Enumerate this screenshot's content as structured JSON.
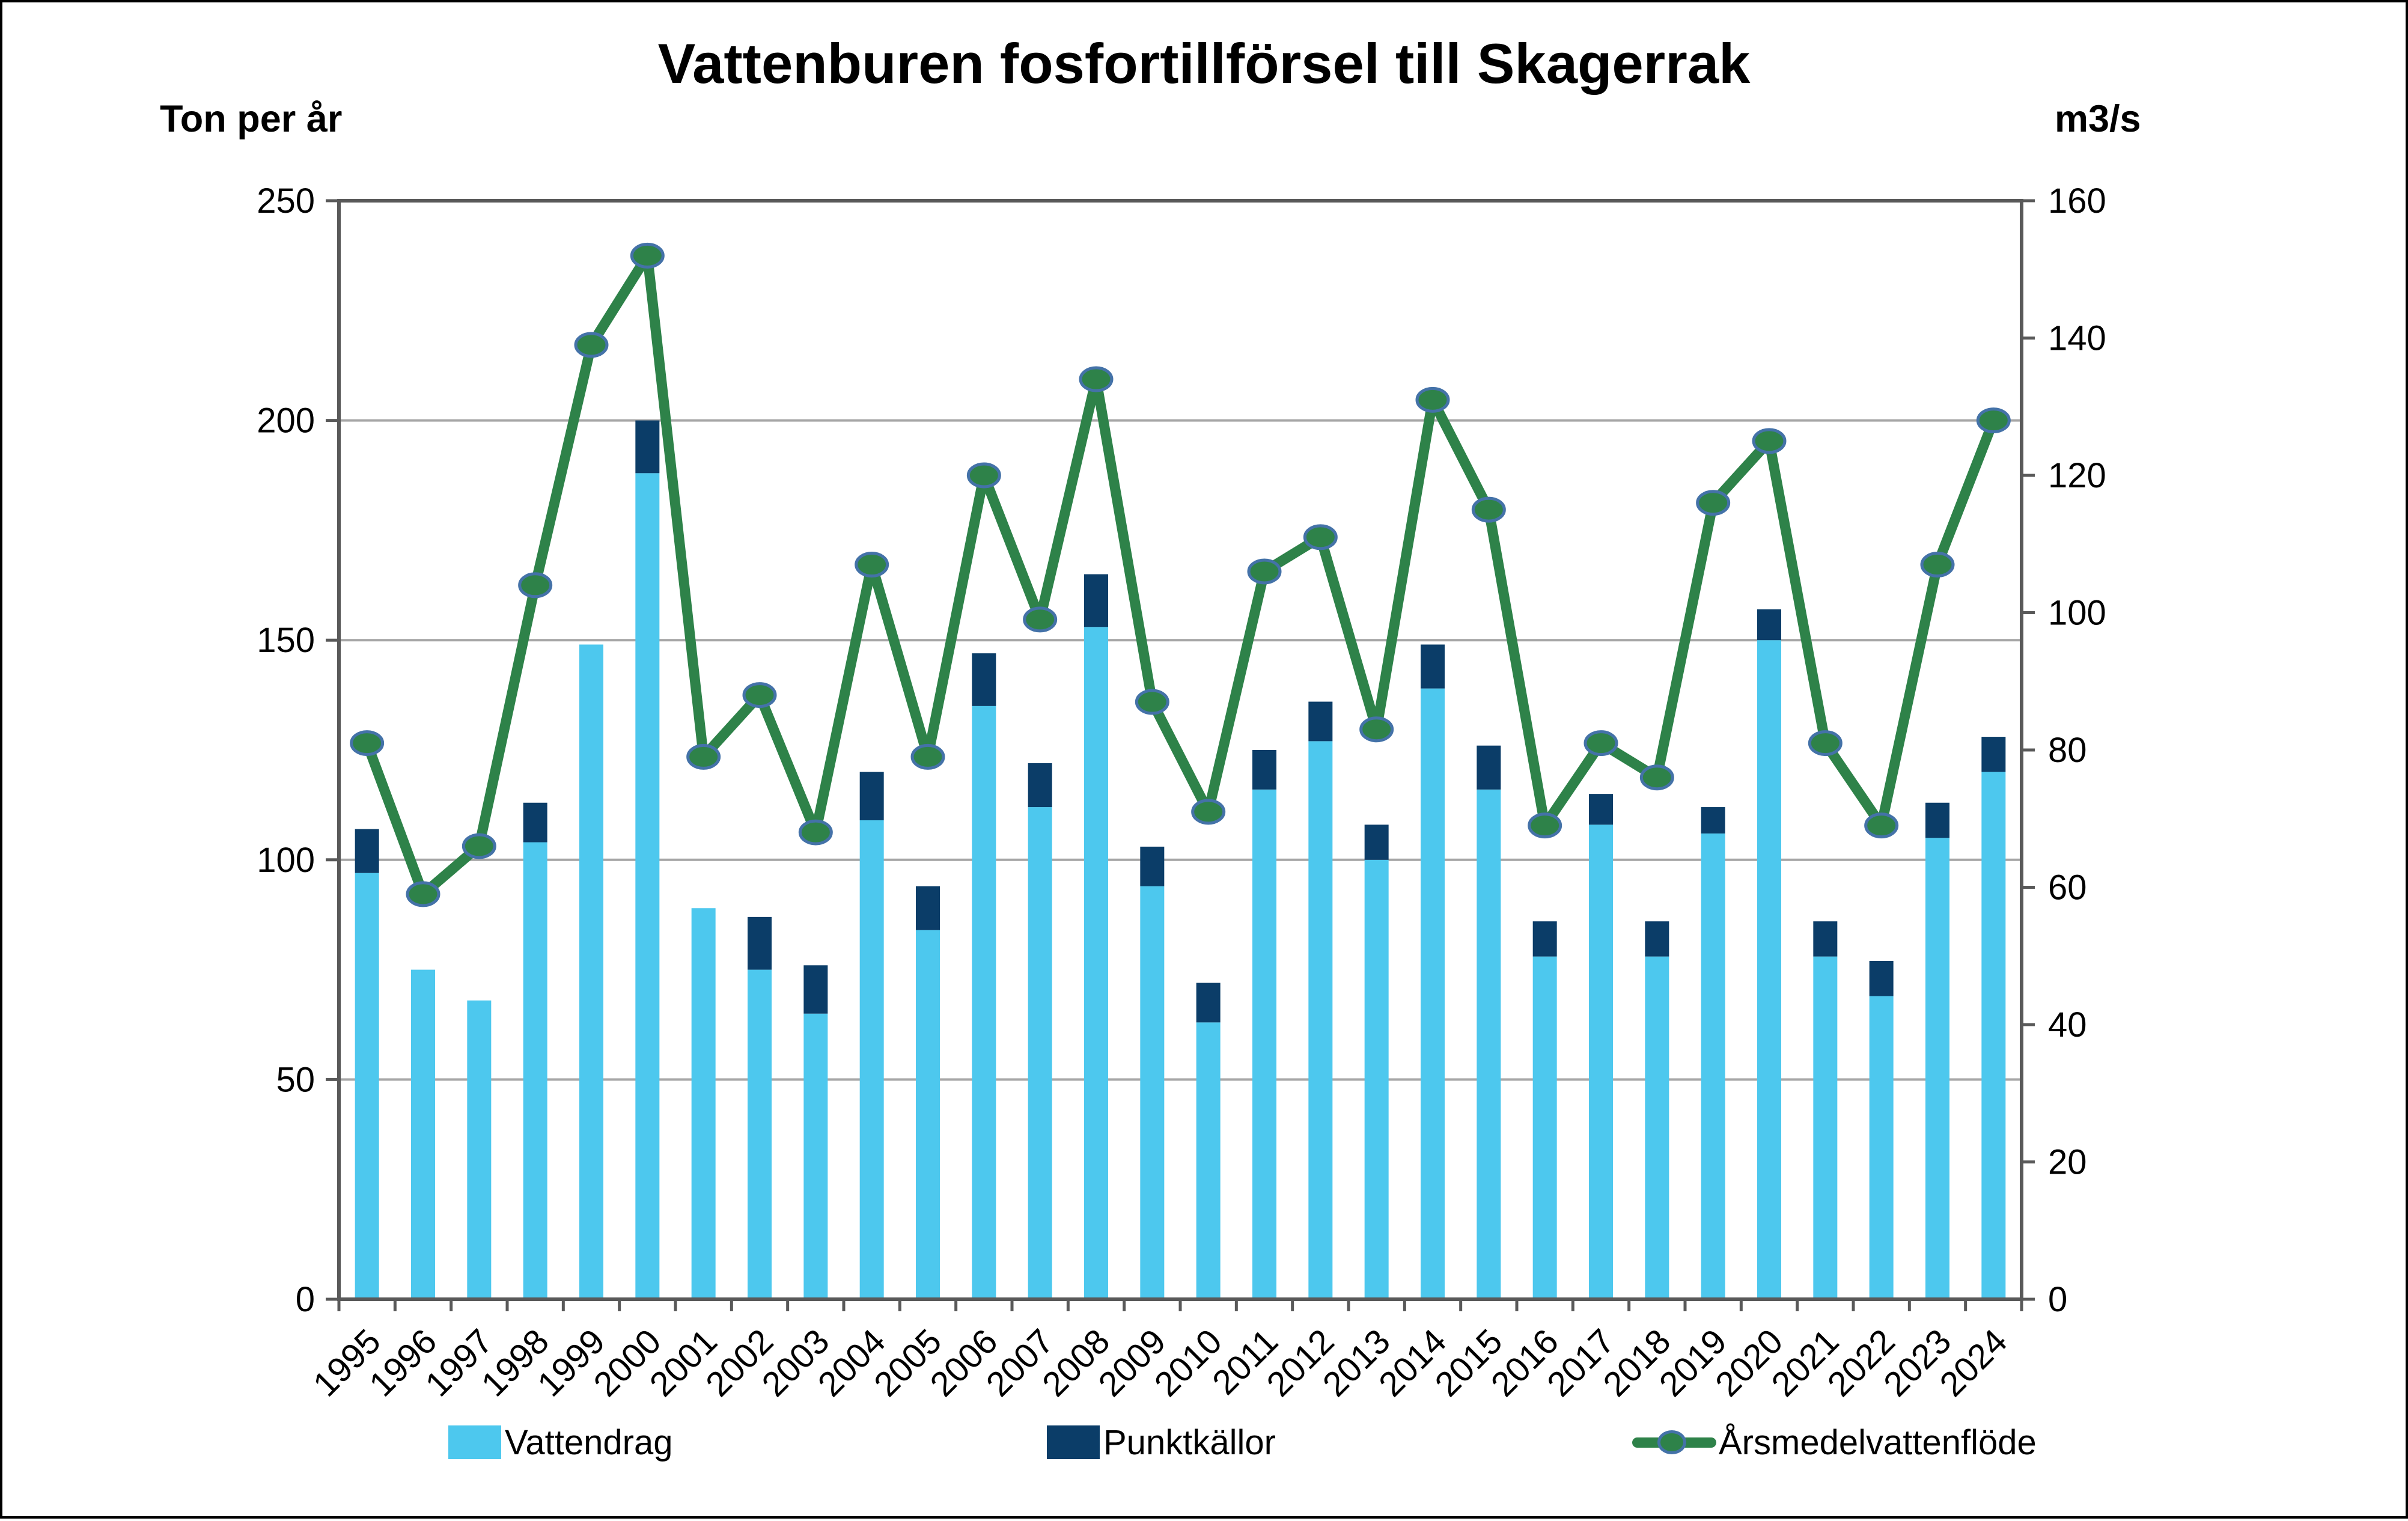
{
  "title": "Vattenburen fosfortillförsel till Skagerrak",
  "left_axis": {
    "label": "Ton per år",
    "ticks": [
      0,
      50,
      100,
      150,
      200,
      250
    ],
    "max": 250
  },
  "right_axis": {
    "label": "m3/s",
    "ticks": [
      0,
      20,
      40,
      60,
      80,
      100,
      120,
      140,
      160
    ],
    "max": 160
  },
  "legend": [
    {
      "label": "Vattendrag",
      "type": "bar",
      "color": "#4DC8EE"
    },
    {
      "label": "Punktkällor",
      "type": "bar",
      "color": "#0B3D68"
    },
    {
      "label": "Årsmedelvattenflöde",
      "type": "line",
      "color": "#2E8249"
    }
  ],
  "colors": {
    "vattendrag": "#4DC8EE",
    "punktkallor": "#0B3D68",
    "flode_line": "#2E8249",
    "marker_stroke": "#4472A8",
    "gridline": "#A6A6A6",
    "axis": "#595959",
    "text": "#000000"
  },
  "chart_data": {
    "type": "bar+line",
    "title": "Vattenburen fosfortillförsel till Skagerrak",
    "categories": [
      "1995",
      "1996",
      "1997",
      "1998",
      "1999",
      "2000",
      "2001",
      "2002",
      "2003",
      "2004",
      "2005",
      "2006",
      "2007",
      "2008",
      "2009",
      "2010",
      "2011",
      "2012",
      "2013",
      "2014",
      "2015",
      "2016",
      "2017",
      "2018",
      "2019",
      "2020",
      "2021",
      "2022",
      "2023",
      "2024"
    ],
    "series": [
      {
        "name": "Vattendrag",
        "type": "bar",
        "stack": true,
        "axis": "left",
        "values": [
          97,
          75,
          68,
          104,
          149,
          188,
          89,
          75,
          65,
          109,
          84,
          135,
          112,
          153,
          94,
          63,
          116,
          127,
          100,
          139,
          116,
          78,
          108,
          78,
          106,
          150,
          78,
          69,
          105,
          120
        ]
      },
      {
        "name": "Punktkällor",
        "type": "bar",
        "stack": true,
        "axis": "left",
        "values": [
          10,
          0,
          0,
          9,
          0,
          12,
          0,
          12,
          11,
          11,
          10,
          12,
          10,
          12,
          9,
          9,
          9,
          9,
          8,
          10,
          10,
          8,
          7,
          8,
          6,
          7,
          8,
          8,
          8,
          8
        ]
      },
      {
        "name": "Årsmedelvattenflöde",
        "type": "line",
        "axis": "right",
        "values": [
          81,
          59,
          66,
          104,
          139,
          152,
          79,
          88,
          68,
          107,
          79,
          120,
          99,
          134,
          87,
          71,
          106,
          111,
          83,
          131,
          115,
          69,
          81,
          76,
          116,
          125,
          81,
          69,
          107,
          128
        ]
      }
    ],
    "left_ylabel": "Ton per år",
    "right_ylabel": "m3/s",
    "left_ylim": [
      0,
      250
    ],
    "right_ylim": [
      0,
      160
    ],
    "grid": true,
    "legend_position": "bottom"
  }
}
